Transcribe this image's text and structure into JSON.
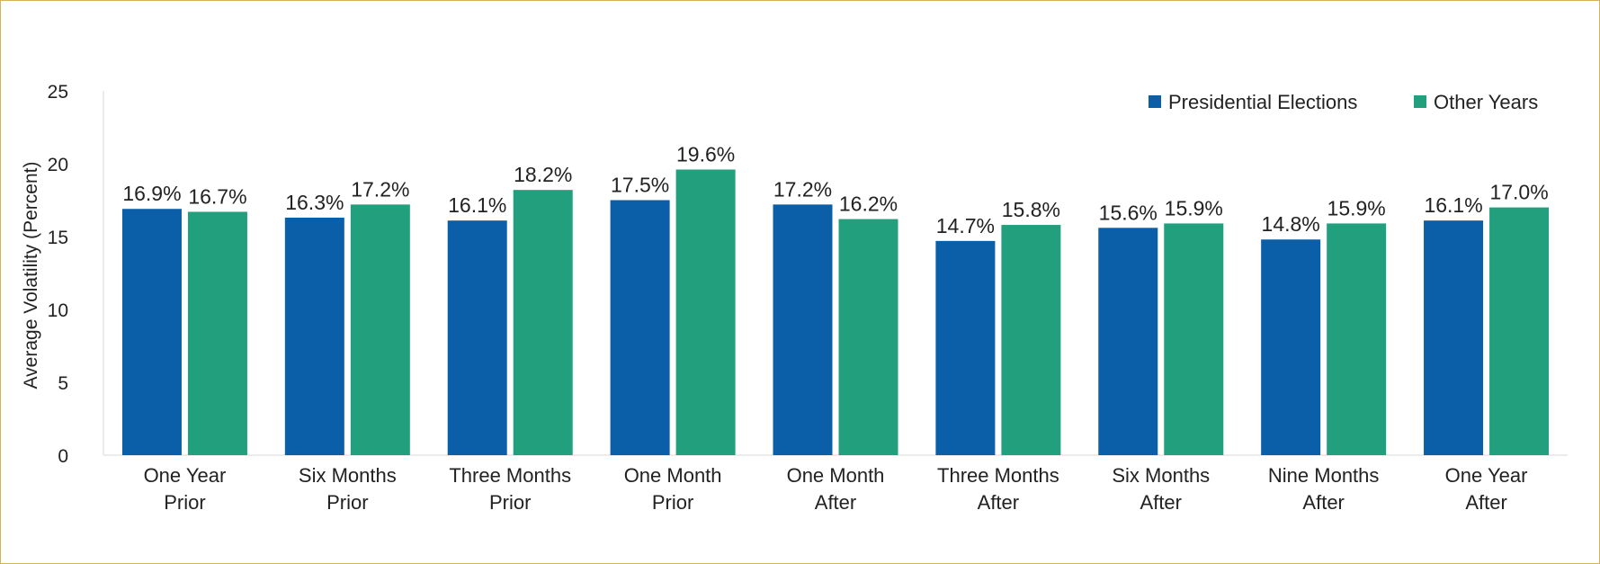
{
  "chart_data": {
    "type": "bar",
    "title": "",
    "xlabel": "",
    "ylabel": "Average Volatility (Percent)",
    "ylim": [
      0,
      25
    ],
    "yticks": [
      0,
      5,
      10,
      15,
      20,
      25
    ],
    "grid": false,
    "legend_position": "top-right",
    "categories": [
      [
        "One Year",
        "Prior"
      ],
      [
        "Six Months",
        "Prior"
      ],
      [
        "Three Months",
        "Prior"
      ],
      [
        "One Month",
        "Prior"
      ],
      [
        "One Month",
        "After"
      ],
      [
        "Three Months",
        "After"
      ],
      [
        "Six Months",
        "After"
      ],
      [
        "Nine Months",
        "After"
      ],
      [
        "One Year",
        "After"
      ]
    ],
    "series": [
      {
        "name": "Presidential Elections",
        "color": "#0a5fa8",
        "values": [
          16.9,
          16.3,
          16.1,
          17.5,
          17.2,
          14.7,
          15.6,
          14.8,
          16.1
        ],
        "labels": [
          "16.9%",
          "16.3%",
          "16.1%",
          "17.5%",
          "17.2%",
          "14.7%",
          "15.6%",
          "14.8%",
          "16.1%"
        ]
      },
      {
        "name": "Other Years",
        "color": "#22a07e",
        "values": [
          16.7,
          17.2,
          18.2,
          19.6,
          16.2,
          15.8,
          15.9,
          15.9,
          17.0
        ],
        "labels": [
          "16.7%",
          "17.2%",
          "18.2%",
          "19.6%",
          "16.2%",
          "15.8%",
          "15.9%",
          "15.9%",
          "17.0%"
        ]
      }
    ]
  }
}
